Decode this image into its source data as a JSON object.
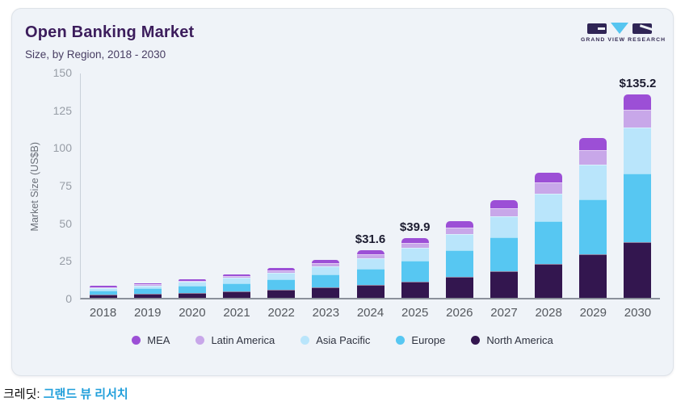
{
  "card": {
    "title": "Open Banking Market",
    "subtitle": "Size, by Region, 2018 - 2030",
    "logo": {
      "text": "GRAND VIEW RESEARCH"
    }
  },
  "footer": {
    "credit_label": "크레딧:",
    "credit_link": "그랜드 뷰 리서치",
    "link_color": "#219fdb"
  },
  "chart_data": {
    "type": "bar",
    "stacked": true,
    "title": "Open Banking Market",
    "subtitle": "Size, by Region, 2018 - 2030",
    "xlabel": "",
    "ylabel": "Market Size (US$B)",
    "ylim": [
      0,
      150
    ],
    "yticks": [
      0,
      25,
      50,
      75,
      100,
      125,
      150
    ],
    "grid": false,
    "legend_position": "bottom",
    "categories": [
      "2018",
      "2019",
      "2020",
      "2021",
      "2022",
      "2023",
      "2024",
      "2025",
      "2026",
      "2027",
      "2028",
      "2029",
      "2030"
    ],
    "series": [
      {
        "name": "North America",
        "color": "#33164f",
        "values": [
          2.2,
          2.7,
          3.4,
          4.3,
          5.4,
          6.8,
          8.5,
          10.7,
          13.7,
          17.6,
          22.5,
          28.9,
          37.0
        ]
      },
      {
        "name": "Europe",
        "color": "#57c7f2",
        "values": [
          2.9,
          3.6,
          4.5,
          5.6,
          7.0,
          8.8,
          11.0,
          13.9,
          17.7,
          22.5,
          28.6,
          36.3,
          45.5
        ]
      },
      {
        "name": "Asia Pacific",
        "color": "#b9e5fb",
        "values": [
          1.6,
          2.0,
          2.6,
          3.3,
          4.2,
          5.3,
          6.8,
          8.6,
          11.0,
          14.2,
          18.0,
          23.1,
          30.5
        ]
      },
      {
        "name": "Latin America",
        "color": "#c8a7e9",
        "values": [
          0.5,
          0.7,
          0.9,
          1.2,
          1.5,
          1.9,
          2.5,
          3.2,
          4.2,
          5.4,
          7.3,
          9.7,
          12.0
        ]
      },
      {
        "name": "MEA",
        "color": "#9c4fd6",
        "values": [
          0.7,
          0.9,
          1.2,
          1.4,
          1.8,
          2.3,
          2.8,
          3.5,
          4.3,
          5.3,
          6.5,
          7.9,
          10.2
        ]
      }
    ],
    "totals": [
      7.9,
      9.9,
      12.6,
      15.8,
      19.9,
      25.1,
      31.6,
      39.9,
      50.9,
      65.0,
      82.9,
      105.9,
      135.2
    ],
    "annotations": [
      {
        "year": "2024",
        "label": "$31.6"
      },
      {
        "year": "2025",
        "label": "$39.9"
      },
      {
        "year": "2030",
        "label": "$135.2"
      }
    ],
    "legend_order": [
      "MEA",
      "Latin America",
      "Asia Pacific",
      "Europe",
      "North America"
    ]
  }
}
